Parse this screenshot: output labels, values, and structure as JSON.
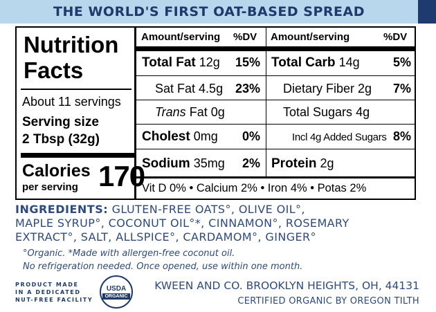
{
  "banner": {
    "title": "THE WORLD'S FIRST OAT-BASED SPREAD"
  },
  "panel": {
    "title_line1": "Nutrition",
    "title_line2": "Facts",
    "servings": "About 11 servings",
    "serving_size_label": "Serving size",
    "serving_size_value": "2 Tbsp (32g)",
    "calories_label": "Calories",
    "calories_sub": "per serving",
    "calories_value": "170",
    "left_header": {
      "amount": "Amount/serving",
      "dv": "%DV"
    },
    "right_header": {
      "amount": "Amount/serving",
      "dv": "%DV"
    },
    "left_rows": [
      {
        "name": "Total Fat",
        "amount": "12g",
        "pct": "15%"
      },
      {
        "name": "Sat Fat",
        "amount": "4.5g",
        "pct": "23%"
      },
      {
        "name": "Trans",
        "amount": "Fat 0g",
        "pct": ""
      },
      {
        "name": "Cholest",
        "amount": "0mg",
        "pct": "0%"
      },
      {
        "name": "Sodium",
        "amount": "35mg",
        "pct": "2%"
      }
    ],
    "right_rows": [
      {
        "name": "Total Carb",
        "amount": "14g",
        "pct": "5%"
      },
      {
        "name": "Dietary Fiber",
        "amount": "2g",
        "pct": "7%"
      },
      {
        "name": "Total Sugars",
        "amount": "4g",
        "pct": ""
      },
      {
        "name": "Incl 4g Added Sugars",
        "amount": "",
        "pct": "8%"
      },
      {
        "name": "Protein",
        "amount": "2g",
        "pct": ""
      }
    ],
    "vitamins": "Vit D 0% • Calcium 2% • Iron 4% • Potas 2%"
  },
  "ingredients": {
    "label": "INGREDIENTS:",
    "line1": "GLUTEN-FREE OATS°, OLIVE OIL°,",
    "line2": "MAPLE SYRUP°, COCONUT OIL°*, CINNAMON°, ROSEMARY",
    "line3": "EXTRACT°, SALT, ALLSPICE°, CARDAMOM°, GINGER°"
  },
  "notes": {
    "organic": "°Organic. *Made with allergen-free coconut oil.",
    "storage": "No refrigeration needed. Once opened, use within one month."
  },
  "footer": {
    "facility_line1": "PRODUCT MADE",
    "facility_line2": "IN A DEDICATED",
    "facility_line3": "NUT-FREE FACILITY",
    "seal_top": "USDA",
    "seal_bottom": "ORGANIC",
    "company": "KWEEN AND CO. BROOKLYN HEIGHTS, OH, 44131",
    "certified": "CERTIFIED ORGANIC BY OREGON TILTH"
  },
  "colors": {
    "banner_bg": "#b9d7ec",
    "banner_text": "#1e3a6b",
    "accent_text": "#2d4a7c",
    "corner": "#1f3a6e"
  }
}
